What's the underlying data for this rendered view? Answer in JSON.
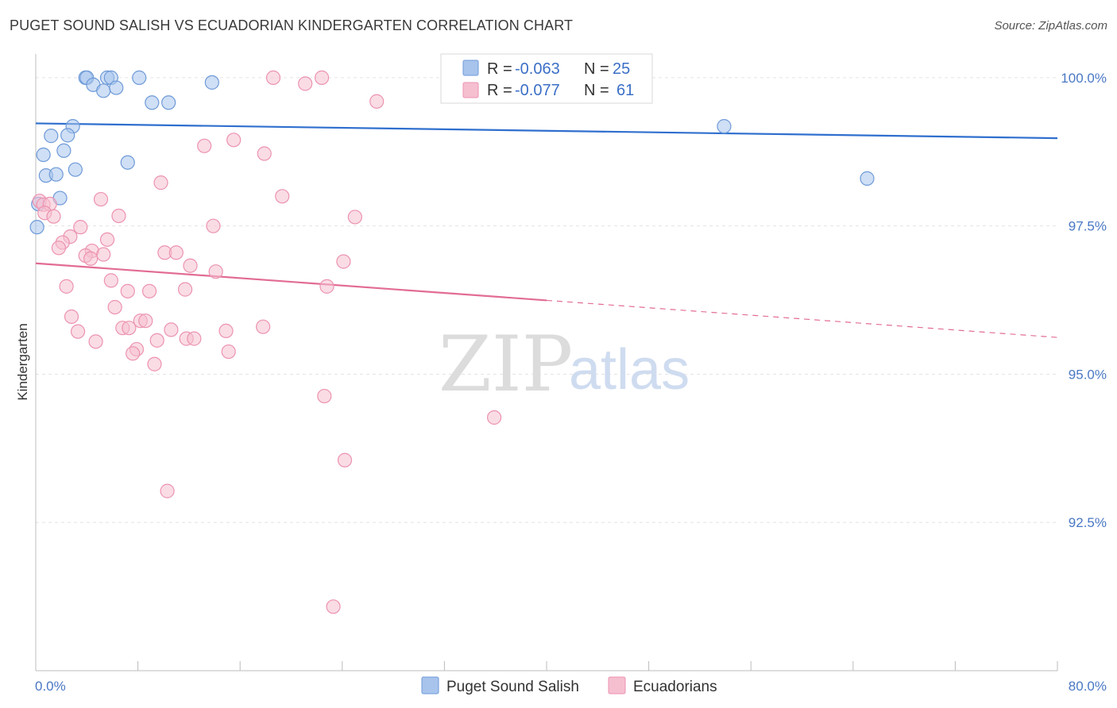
{
  "title": "PUGET SOUND SALISH VS ECUADORIAN KINDERGARTEN CORRELATION CHART",
  "source": "Source: ZipAtlas.com",
  "watermark": {
    "zip": "ZIP",
    "atlas": "atlas"
  },
  "colors": {
    "blue_fill": "#a8c4ec",
    "blue_stroke": "#6e9ad8",
    "blue_line": "#2f6fce",
    "pink_fill": "#f6bfd0",
    "pink_stroke": "#ec93b0",
    "pink_line": "#e26c95",
    "grid": "#e4e4e4",
    "axis_text": "#4a78c4"
  },
  "legend": {
    "rows": [
      {
        "r_label": "R =",
        "r_value": "-0.063",
        "n_label": "N =",
        "n_value": "25"
      },
      {
        "r_label": "R =",
        "r_value": "-0.077",
        "n_label": "N =",
        "n_value": "61"
      }
    ]
  },
  "chart_data": {
    "type": "scatter",
    "title": "PUGET SOUND SALISH VS ECUADORIAN KINDERGARTEN CORRELATION CHART",
    "xlabel": "",
    "ylabel": "Kindergarten",
    "xlim": [
      0,
      80
    ],
    "ylim": [
      90.0,
      100.4
    ],
    "x_tick_labels": [
      "0.0%",
      "80.0%"
    ],
    "y_ticks": [
      {
        "value": 100.0,
        "label": "100.0%"
      },
      {
        "value": 97.5,
        "label": "97.5%"
      },
      {
        "value": 95.0,
        "label": "95.0%"
      },
      {
        "value": 92.5,
        "label": "92.5%"
      }
    ],
    "series": [
      {
        "name": "Puget Sound Salish",
        "color": "blue",
        "trend": {
          "x0": 0,
          "y0": 99.23,
          "x1": 80,
          "y1": 98.98,
          "dashed_from": null
        },
        "points": [
          {
            "x": 3.9,
            "y": 100.0
          },
          {
            "x": 4.0,
            "y": 100.0
          },
          {
            "x": 5.6,
            "y": 100.0
          },
          {
            "x": 5.9,
            "y": 100.0
          },
          {
            "x": 8.1,
            "y": 100.0
          },
          {
            "x": 4.5,
            "y": 99.88
          },
          {
            "x": 5.3,
            "y": 99.78
          },
          {
            "x": 6.3,
            "y": 99.83
          },
          {
            "x": 13.8,
            "y": 99.92
          },
          {
            "x": 9.1,
            "y": 99.58
          },
          {
            "x": 10.4,
            "y": 99.58
          },
          {
            "x": 2.9,
            "y": 99.18
          },
          {
            "x": 1.2,
            "y": 99.02
          },
          {
            "x": 2.5,
            "y": 99.03
          },
          {
            "x": 0.6,
            "y": 98.7
          },
          {
            "x": 2.2,
            "y": 98.77
          },
          {
            "x": 7.2,
            "y": 98.57
          },
          {
            "x": 3.1,
            "y": 98.45
          },
          {
            "x": 0.8,
            "y": 98.35
          },
          {
            "x": 1.6,
            "y": 98.37
          },
          {
            "x": 1.9,
            "y": 97.97
          },
          {
            "x": 0.1,
            "y": 97.48
          },
          {
            "x": 53.9,
            "y": 99.18
          },
          {
            "x": 65.1,
            "y": 98.3
          },
          {
            "x": 0.2,
            "y": 97.87
          }
        ]
      },
      {
        "name": "Ecuadorians",
        "color": "pink",
        "trend": {
          "x0": 0,
          "y0": 96.87,
          "x1": 80,
          "y1": 95.62,
          "dashed_from": 40
        },
        "points": [
          {
            "x": 18.6,
            "y": 100.0
          },
          {
            "x": 22.4,
            "y": 100.0
          },
          {
            "x": 21.1,
            "y": 99.9
          },
          {
            "x": 26.7,
            "y": 99.6
          },
          {
            "x": 15.5,
            "y": 98.95
          },
          {
            "x": 13.2,
            "y": 98.85
          },
          {
            "x": 17.9,
            "y": 98.72
          },
          {
            "x": 9.8,
            "y": 98.23
          },
          {
            "x": 0.3,
            "y": 97.92
          },
          {
            "x": 0.6,
            "y": 97.86
          },
          {
            "x": 1.1,
            "y": 97.87
          },
          {
            "x": 5.1,
            "y": 97.95
          },
          {
            "x": 19.3,
            "y": 98.0
          },
          {
            "x": 0.7,
            "y": 97.72
          },
          {
            "x": 1.4,
            "y": 97.66
          },
          {
            "x": 6.5,
            "y": 97.67
          },
          {
            "x": 25.0,
            "y": 97.65
          },
          {
            "x": 3.5,
            "y": 97.48
          },
          {
            "x": 13.9,
            "y": 97.5
          },
          {
            "x": 2.7,
            "y": 97.32
          },
          {
            "x": 5.6,
            "y": 97.27
          },
          {
            "x": 2.1,
            "y": 97.22
          },
          {
            "x": 1.8,
            "y": 97.13
          },
          {
            "x": 4.4,
            "y": 97.08
          },
          {
            "x": 3.9,
            "y": 97.0
          },
          {
            "x": 5.3,
            "y": 97.02
          },
          {
            "x": 4.3,
            "y": 96.95
          },
          {
            "x": 10.1,
            "y": 97.05
          },
          {
            "x": 11.0,
            "y": 97.05
          },
          {
            "x": 12.1,
            "y": 96.83
          },
          {
            "x": 14.1,
            "y": 96.73
          },
          {
            "x": 24.1,
            "y": 96.9
          },
          {
            "x": 5.9,
            "y": 96.58
          },
          {
            "x": 2.4,
            "y": 96.48
          },
          {
            "x": 22.8,
            "y": 96.48
          },
          {
            "x": 7.2,
            "y": 96.4
          },
          {
            "x": 8.9,
            "y": 96.4
          },
          {
            "x": 11.7,
            "y": 96.43
          },
          {
            "x": 6.2,
            "y": 96.13
          },
          {
            "x": 2.8,
            "y": 95.97
          },
          {
            "x": 8.2,
            "y": 95.9
          },
          {
            "x": 8.6,
            "y": 95.9
          },
          {
            "x": 6.8,
            "y": 95.78
          },
          {
            "x": 7.3,
            "y": 95.78
          },
          {
            "x": 3.3,
            "y": 95.72
          },
          {
            "x": 10.6,
            "y": 95.75
          },
          {
            "x": 14.9,
            "y": 95.73
          },
          {
            "x": 17.8,
            "y": 95.8
          },
          {
            "x": 4.7,
            "y": 95.55
          },
          {
            "x": 9.5,
            "y": 95.57
          },
          {
            "x": 11.8,
            "y": 95.6
          },
          {
            "x": 12.4,
            "y": 95.6
          },
          {
            "x": 7.9,
            "y": 95.42
          },
          {
            "x": 7.6,
            "y": 95.35
          },
          {
            "x": 15.1,
            "y": 95.38
          },
          {
            "x": 9.3,
            "y": 95.17
          },
          {
            "x": 22.6,
            "y": 94.63
          },
          {
            "x": 35.9,
            "y": 94.27
          },
          {
            "x": 24.2,
            "y": 93.55
          },
          {
            "x": 10.3,
            "y": 93.03
          },
          {
            "x": 23.3,
            "y": 91.08
          }
        ]
      }
    ],
    "legend_position": "top-center"
  }
}
